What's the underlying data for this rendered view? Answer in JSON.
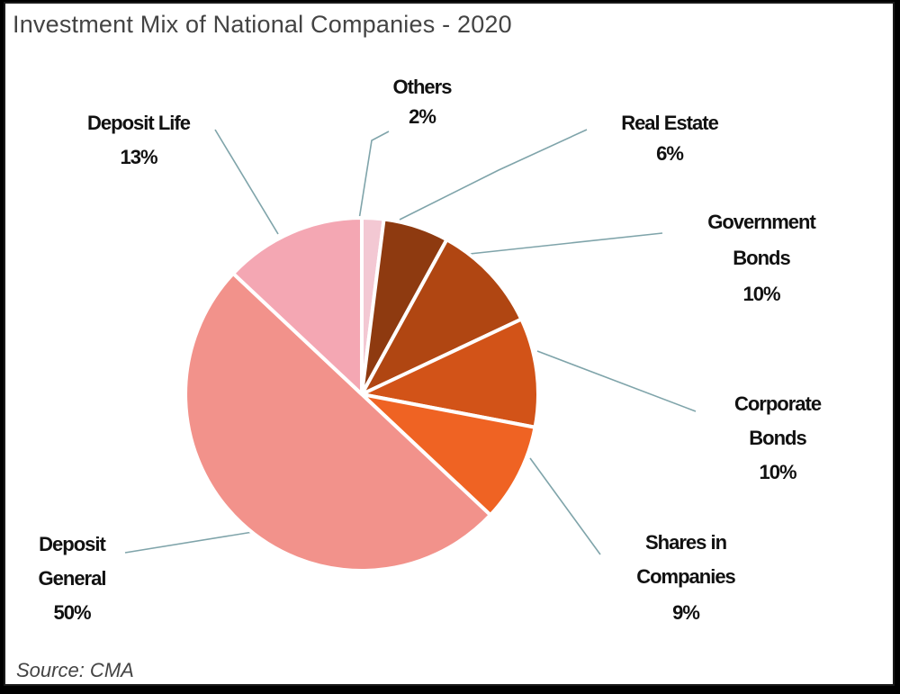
{
  "chart_data": {
    "type": "pie",
    "title": "Investment Mix of National Companies - 2020",
    "source": "Source: CMA",
    "slices": [
      {
        "name": "Others",
        "value": 2,
        "pct_label": "2%",
        "color": "#f3c8d3"
      },
      {
        "name": "Real Estate",
        "value": 6,
        "pct_label": "6%",
        "color": "#8e3a10"
      },
      {
        "name": "Government Bonds",
        "value": 10,
        "pct_label": "10%",
        "color": "#b04612"
      },
      {
        "name": "Corporate Bonds",
        "value": 10,
        "pct_label": "10%",
        "color": "#d25318"
      },
      {
        "name": "Shares in Companies",
        "value": 9,
        "pct_label": "9%",
        "color": "#ef6323"
      },
      {
        "name": "Deposit General",
        "value": 50,
        "pct_label": "50%",
        "color": "#f2928b"
      },
      {
        "name": "Deposit Life",
        "value": 13,
        "pct_label": "13%",
        "color": "#f4a7b3"
      }
    ],
    "label_lines": {
      "Others": [
        "Others",
        "2%"
      ],
      "Real Estate": [
        "Real Estate",
        "6%"
      ],
      "Government Bonds": [
        "Government",
        "Bonds",
        "10%"
      ],
      "Corporate Bonds": [
        "Corporate",
        "Bonds",
        "10%"
      ],
      "Shares in Companies": [
        "Shares in",
        "Companies",
        "9%"
      ],
      "Deposit General": [
        "Deposit",
        "General",
        "50%"
      ],
      "Deposit Life": [
        "Deposit Life",
        "13%"
      ]
    },
    "legend": "none"
  }
}
